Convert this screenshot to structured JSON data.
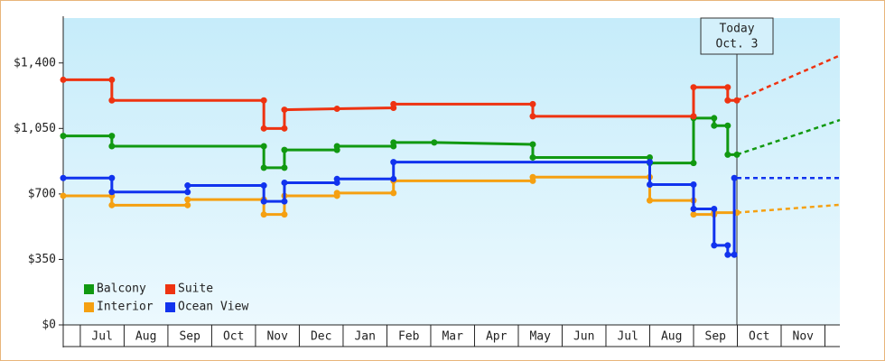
{
  "chart_data": {
    "type": "step-line",
    "categories": [
      "Jul",
      "Aug",
      "Sep",
      "Oct",
      "Nov",
      "Dec",
      "Jan",
      "Feb",
      "Mar",
      "Apr",
      "May",
      "Jun",
      "Jul",
      "Aug",
      "Sep",
      "Oct",
      "Nov"
    ],
    "xlim": [
      -0.39,
      17.34
    ],
    "ylim": [
      0,
      1640
    ],
    "yticks": [
      {
        "value": 0,
        "label": "$0"
      },
      {
        "value": 350,
        "label": "$350"
      },
      {
        "value": 700,
        "label": "$700"
      },
      {
        "value": 1050,
        "label": "$1,050"
      },
      {
        "value": 1400,
        "label": "$1,400"
      }
    ],
    "legend": "lower left",
    "annotation": {
      "lines": [
        "Today",
        "Oct. 3"
      ],
      "x": 14.99
    },
    "series": [
      {
        "name": "Balcony",
        "color": "#119911",
        "x": [
          -0.39,
          0.72,
          0.72,
          4.19,
          4.19,
          4.66,
          4.66,
          5.86,
          5.86,
          7.15,
          7.15,
          8.08,
          10.33,
          10.33,
          13.0,
          13.0,
          14.0,
          14.0,
          14.47,
          14.47,
          14.78,
          14.78,
          14.99
        ],
        "values": [
          1010,
          1010,
          955,
          955,
          840,
          840,
          935,
          935,
          955,
          955,
          975,
          975,
          965,
          895,
          895,
          865,
          865,
          1105,
          1105,
          1065,
          1065,
          910,
          910
        ],
        "forecast_x": [
          14.99,
          17.34
        ],
        "forecast_values": [
          910,
          1095
        ]
      },
      {
        "name": "Suite",
        "color": "#ee3311",
        "x": [
          -0.39,
          0.72,
          0.72,
          4.19,
          4.19,
          4.66,
          4.66,
          5.86,
          7.15,
          7.15,
          10.33,
          10.33,
          14.0,
          14.0,
          14.78,
          14.78,
          14.99
        ],
        "values": [
          1310,
          1310,
          1200,
          1200,
          1050,
          1050,
          1150,
          1155,
          1160,
          1180,
          1180,
          1115,
          1115,
          1270,
          1270,
          1200,
          1200
        ],
        "forecast_x": [
          14.99,
          17.34
        ],
        "forecast_values": [
          1200,
          1440
        ]
      },
      {
        "name": "Interior",
        "color": "#f5a011",
        "x": [
          -0.39,
          0.72,
          0.72,
          2.45,
          2.45,
          4.19,
          4.19,
          4.66,
          4.66,
          5.86,
          5.86,
          7.15,
          7.15,
          10.33,
          10.33,
          13.0,
          13.0,
          14.0,
          14.0,
          14.47,
          14.47,
          14.99
        ],
        "values": [
          690,
          690,
          640,
          640,
          670,
          670,
          590,
          590,
          690,
          690,
          705,
          705,
          770,
          770,
          790,
          790,
          665,
          665,
          590,
          590,
          600,
          600
        ],
        "forecast_x": [
          14.99,
          17.34
        ],
        "forecast_values": [
          600,
          642
        ]
      },
      {
        "name": "Ocean View",
        "color": "#1133ee",
        "x": [
          -0.39,
          0.72,
          0.72,
          2.45,
          2.45,
          4.19,
          4.19,
          4.66,
          4.66,
          5.86,
          5.86,
          7.15,
          7.15,
          13.0,
          13.0,
          14.0,
          14.0,
          14.47,
          14.47,
          14.78,
          14.78,
          14.93,
          14.93
        ],
        "values": [
          785,
          785,
          710,
          710,
          745,
          745,
          660,
          660,
          760,
          760,
          780,
          780,
          870,
          870,
          750,
          750,
          620,
          620,
          425,
          425,
          375,
          375,
          785
        ],
        "forecast_x": [
          14.99,
          17.34
        ],
        "forecast_values": [
          785,
          785
        ]
      }
    ]
  }
}
